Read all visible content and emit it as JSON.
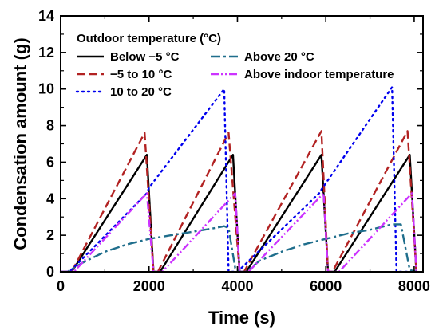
{
  "chart_data": {
    "type": "line",
    "xlabel": "Time (s)",
    "ylabel": "Condensation amount (g)",
    "xlim": [
      0,
      8200
    ],
    "ylim": [
      0,
      14
    ],
    "xticks": [
      "0",
      "2000",
      "4000",
      "6000",
      "8000"
    ],
    "yticks": [
      "0",
      "2",
      "4",
      "6",
      "8",
      "10",
      "12",
      "14"
    ],
    "legend": {
      "title": "Outdoor temperature (°C)",
      "position": "top-left",
      "entries": [
        "Below −5 °C",
        "−5 to 10 °C",
        "10 to 20 °C",
        "Above 20 °C",
        "Above indoor temperature"
      ]
    },
    "series": [
      {
        "name": "Below −5 °C",
        "color": "#000000",
        "dash": "solid",
        "points": [
          [
            0,
            0
          ],
          [
            250,
            0
          ],
          [
            1950,
            6.4
          ],
          [
            2100,
            0
          ],
          [
            2250,
            0
          ],
          [
            3900,
            6.4
          ],
          [
            4050,
            0
          ],
          [
            4200,
            0
          ],
          [
            5900,
            6.4
          ],
          [
            6050,
            0
          ],
          [
            6200,
            0
          ],
          [
            7900,
            6.4
          ],
          [
            8050,
            0
          ]
        ]
      },
      {
        "name": "−5 to 10 °C",
        "color": "#b22222",
        "dash": "dashed",
        "points": [
          [
            0,
            0
          ],
          [
            250,
            0
          ],
          [
            1900,
            7.6
          ],
          [
            2100,
            0
          ],
          [
            2200,
            0
          ],
          [
            3800,
            7.6
          ],
          [
            4050,
            0
          ],
          [
            4150,
            0
          ],
          [
            5900,
            7.7
          ],
          [
            6050,
            0
          ],
          [
            6150,
            0
          ],
          [
            7850,
            7.7
          ],
          [
            8050,
            0
          ]
        ]
      },
      {
        "name": "10 to 20 °C",
        "color": "#0000ee",
        "dash": "dotted",
        "points": [
          [
            0,
            0
          ],
          [
            200,
            0
          ],
          [
            1950,
            4.3
          ],
          [
            2000,
            4.6
          ],
          [
            3700,
            10.0
          ],
          [
            3800,
            0
          ],
          [
            4000,
            0
          ],
          [
            5850,
            4.3
          ],
          [
            5900,
            4.5
          ],
          [
            7500,
            10.1
          ],
          [
            7600,
            0
          ],
          [
            8000,
            0
          ]
        ]
      },
      {
        "name": "Above 20 °C",
        "color": "#1f6e8c",
        "dash": "dashdot",
        "points": [
          [
            0,
            0
          ],
          [
            150,
            0
          ],
          [
            500,
            0.5
          ],
          [
            1000,
            1.1
          ],
          [
            1500,
            1.5
          ],
          [
            2000,
            1.8
          ],
          [
            2500,
            2.0
          ],
          [
            3000,
            2.2
          ],
          [
            3500,
            2.4
          ],
          [
            3700,
            2.5
          ],
          [
            3800,
            2.4
          ],
          [
            3950,
            0.2
          ],
          [
            4050,
            0
          ],
          [
            4200,
            0
          ],
          [
            4500,
            0.6
          ],
          [
            5000,
            1.1
          ],
          [
            5500,
            1.5
          ],
          [
            6000,
            1.8
          ],
          [
            6500,
            2.1
          ],
          [
            7000,
            2.3
          ],
          [
            7500,
            2.6
          ],
          [
            7700,
            2.6
          ],
          [
            7900,
            0.1
          ],
          [
            8050,
            0
          ]
        ]
      },
      {
        "name": "Above indoor temperature",
        "color": "#cc33ff",
        "dash": "dashdotdot",
        "points": [
          [
            0,
            0
          ],
          [
            300,
            0
          ],
          [
            1950,
            4.3
          ],
          [
            2100,
            0
          ],
          [
            2300,
            0
          ],
          [
            3950,
            4.3
          ],
          [
            4050,
            0
          ],
          [
            4250,
            0
          ],
          [
            5950,
            4.3
          ],
          [
            6050,
            0
          ],
          [
            6300,
            0
          ],
          [
            7950,
            4.3
          ],
          [
            8050,
            0
          ]
        ]
      }
    ]
  }
}
